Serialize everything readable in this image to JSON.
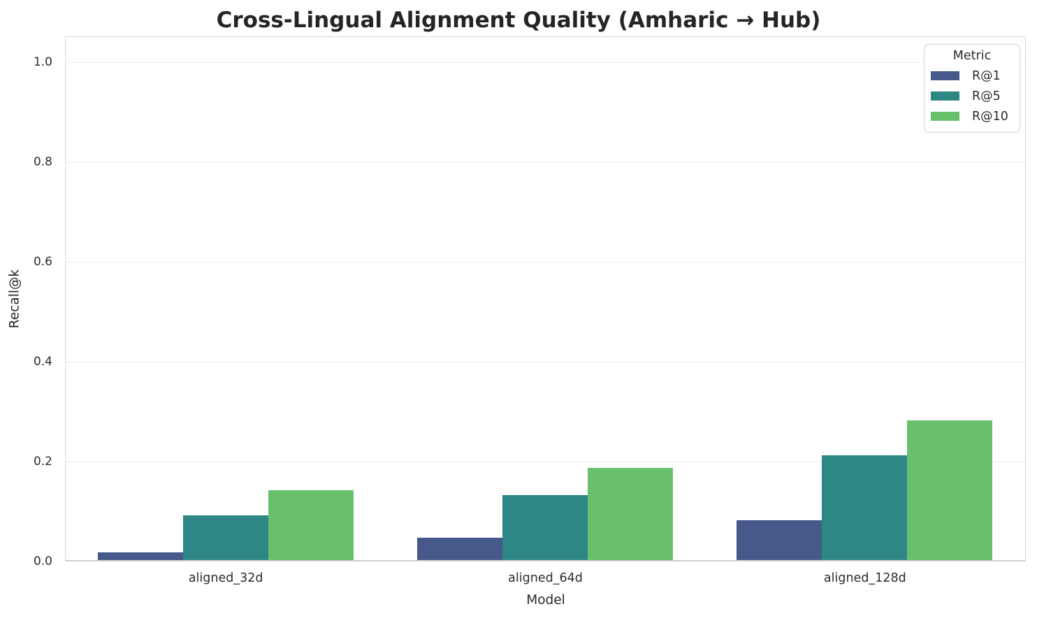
{
  "chart_data": {
    "type": "bar",
    "title": "Cross-Lingual Alignment Quality (Amharic → Hub)",
    "xlabel": "Model",
    "ylabel": "Recall@k",
    "categories": [
      "aligned_32d",
      "aligned_64d",
      "aligned_128d"
    ],
    "series": [
      {
        "name": "R@1",
        "color": "#47598a",
        "values": [
          0.015,
          0.045,
          0.08
        ]
      },
      {
        "name": "R@5",
        "color": "#2e8784",
        "values": [
          0.09,
          0.13,
          0.21
        ]
      },
      {
        "name": "R@10",
        "color": "#69c06c",
        "values": [
          0.14,
          0.185,
          0.28
        ]
      }
    ],
    "legend": {
      "title": "Metric",
      "position": "upper right"
    },
    "ylim": [
      0,
      1.05
    ],
    "yticks": [
      0.0,
      0.2,
      0.4,
      0.6,
      0.8,
      1.0
    ],
    "ytick_labels": [
      "0.0",
      "0.2",
      "0.4",
      "0.6",
      "0.8",
      "1.0"
    ],
    "grid": true,
    "group_width_fraction": 0.8,
    "colors": {
      "background": "#ffffff",
      "gridline": "#efefef",
      "spine": "#d9d9d9",
      "text": "#2b2b2b",
      "title_text": "#252525"
    }
  }
}
